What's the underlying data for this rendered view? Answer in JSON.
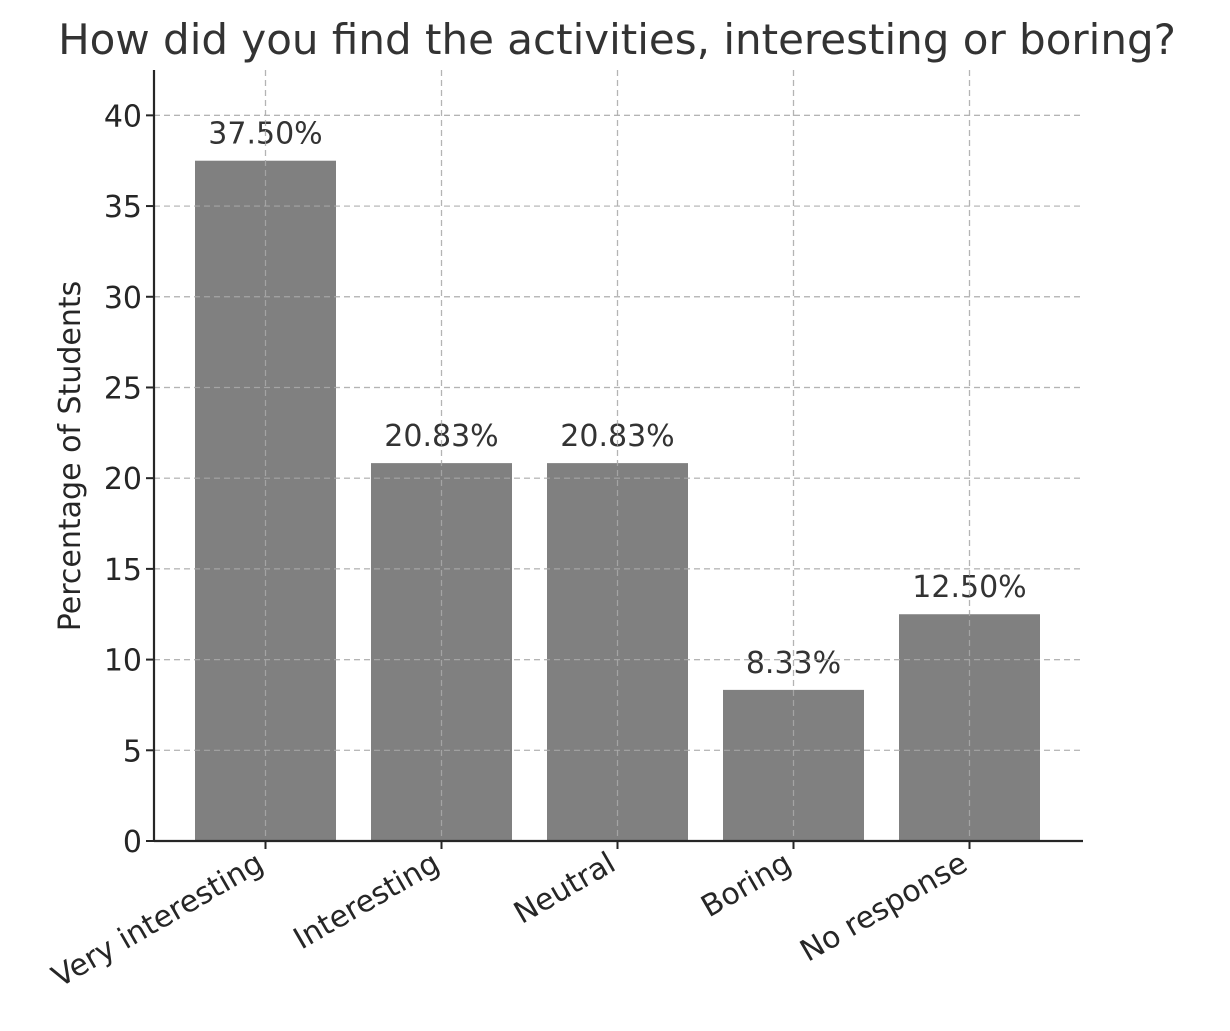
{
  "chart_data": {
    "type": "bar",
    "title": "How did you find the activities, interesting or boring?",
    "xlabel": "",
    "ylabel": "Percentage of Students",
    "categories": [
      "Very interesting",
      "Interesting",
      "Neutral",
      "Boring",
      "No response"
    ],
    "values": [
      37.5,
      20.83,
      20.83,
      8.33,
      12.5
    ],
    "value_labels": [
      "37.50%",
      "20.83%",
      "20.83%",
      "8.33%",
      "12.50%"
    ],
    "ylim": [
      0,
      42.5
    ],
    "yticks": [
      0,
      5,
      10,
      15,
      20,
      25,
      30,
      35,
      40
    ],
    "grid": true,
    "bar_color": "#808080",
    "text_color": "#333333",
    "axis_color": "#262626"
  }
}
